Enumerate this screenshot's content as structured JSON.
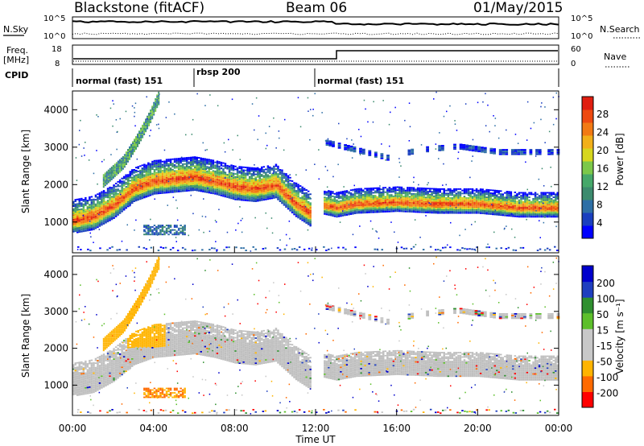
{
  "header": {
    "title": "Blackstone (fitACF)",
    "beam": "Beam 06",
    "date": "01/May/2015"
  },
  "top_panels": {
    "nsky_label": "N.Sky",
    "nsky_ticks": [
      "10^5",
      "10^0"
    ],
    "nsearch_label": "N.Search",
    "nsearch_ticks": [
      "10^5",
      "10^0"
    ],
    "freq_label": "Freq.",
    "freq_unit": "[MHz]",
    "freq_ticks": [
      "18",
      "8"
    ],
    "nave_label": "Nave",
    "nave_ticks": [
      "60",
      "0"
    ],
    "cpid_label": "CPID",
    "cpid_segments": [
      {
        "label": "normal (fast) 151",
        "start_h": 0,
        "end_h": 6
      },
      {
        "label": "rbsp 200",
        "start_h": 6,
        "end_h": 12
      },
      {
        "label": "normal (fast) 151",
        "start_h": 12,
        "end_h": 24
      }
    ]
  },
  "colorbars": {
    "power": {
      "label": "Power [dB]",
      "ticks": [
        "28",
        "24",
        "20",
        "16",
        "12",
        "8",
        "4"
      ]
    },
    "velocity": {
      "label": "Velocity [m s⁻¹]",
      "ticks": [
        "200",
        "100",
        "50",
        "15",
        "-15",
        "-50",
        "-100",
        "-200"
      ]
    }
  },
  "axes": {
    "ylabel": "Slant Range [km]",
    "xlabel": "Time UT",
    "y_ticks": [
      "1000",
      "2000",
      "3000",
      "4000"
    ],
    "x_ticks": [
      "00:00",
      "04:00",
      "08:00",
      "12:00",
      "16:00",
      "20:00",
      "00:00"
    ]
  },
  "chart_data": [
    {
      "type": "heatmap",
      "title": "Power",
      "xlim": [
        0,
        24
      ],
      "ylim": [
        180,
        4500
      ],
      "series": [
        {
          "points_h_km": [
            [
              0,
              1000
            ],
            [
              1,
              1100
            ],
            [
              2,
              1400
            ],
            [
              3,
              1850
            ],
            [
              4,
              2050
            ],
            [
              5,
              2100
            ],
            [
              6,
              2150
            ],
            [
              7,
              2050
            ],
            [
              8,
              1900
            ],
            [
              9,
              1850
            ],
            [
              10,
              1950
            ],
            [
              11,
              1450
            ],
            [
              11.7,
              1200
            ],
            [
              12.2,
              1450
            ],
            [
              13,
              1350
            ],
            [
              14,
              1450
            ],
            [
              16,
              1500
            ],
            [
              18,
              1450
            ],
            [
              20,
              1450
            ],
            [
              22,
              1350
            ],
            [
              24,
              1350
            ]
          ]
        },
        {
          "points_h_km": [
            [
              1.5,
              2100
            ],
            [
              2.5,
              2600
            ],
            [
              3.2,
              3200
            ],
            [
              3.8,
              3800
            ],
            [
              4.2,
              4300
            ]
          ]
        },
        {
          "points_h_km": [
            [
              12.5,
              3100
            ],
            [
              14,
              2900
            ],
            [
              15.5,
              2700
            ],
            [
              17,
              2900
            ],
            [
              19,
              3000
            ],
            [
              21,
              2850
            ],
            [
              24,
              2850
            ]
          ]
        }
      ],
      "colorbar": {
        "label": "Power [dB]",
        "min": 0,
        "max": 30
      }
    },
    {
      "type": "heatmap",
      "title": "Velocity",
      "xlim": [
        0,
        24
      ],
      "ylim": [
        180,
        4500
      ],
      "colorbar": {
        "label": "Velocity [m s⁻¹]",
        "min": -250,
        "max": 250
      }
    }
  ],
  "colors": {
    "power_scale": [
      "#0000ff",
      "#1a3fbf",
      "#2e6fa6",
      "#3c8b6e",
      "#46a86a",
      "#7cc84a",
      "#d6d61e",
      "#f2b01a",
      "#f27a14",
      "#ee4a10",
      "#e01e10"
    ],
    "velocity_scale": [
      "#ff0000",
      "#ff6a00",
      "#ffb400",
      "#c8c8c8",
      "#c8c8c8",
      "#5dbf2b",
      "#2f8f2f",
      "#1f3fbf",
      "#0000cc"
    ],
    "ground_scatter": "#bebebe"
  }
}
